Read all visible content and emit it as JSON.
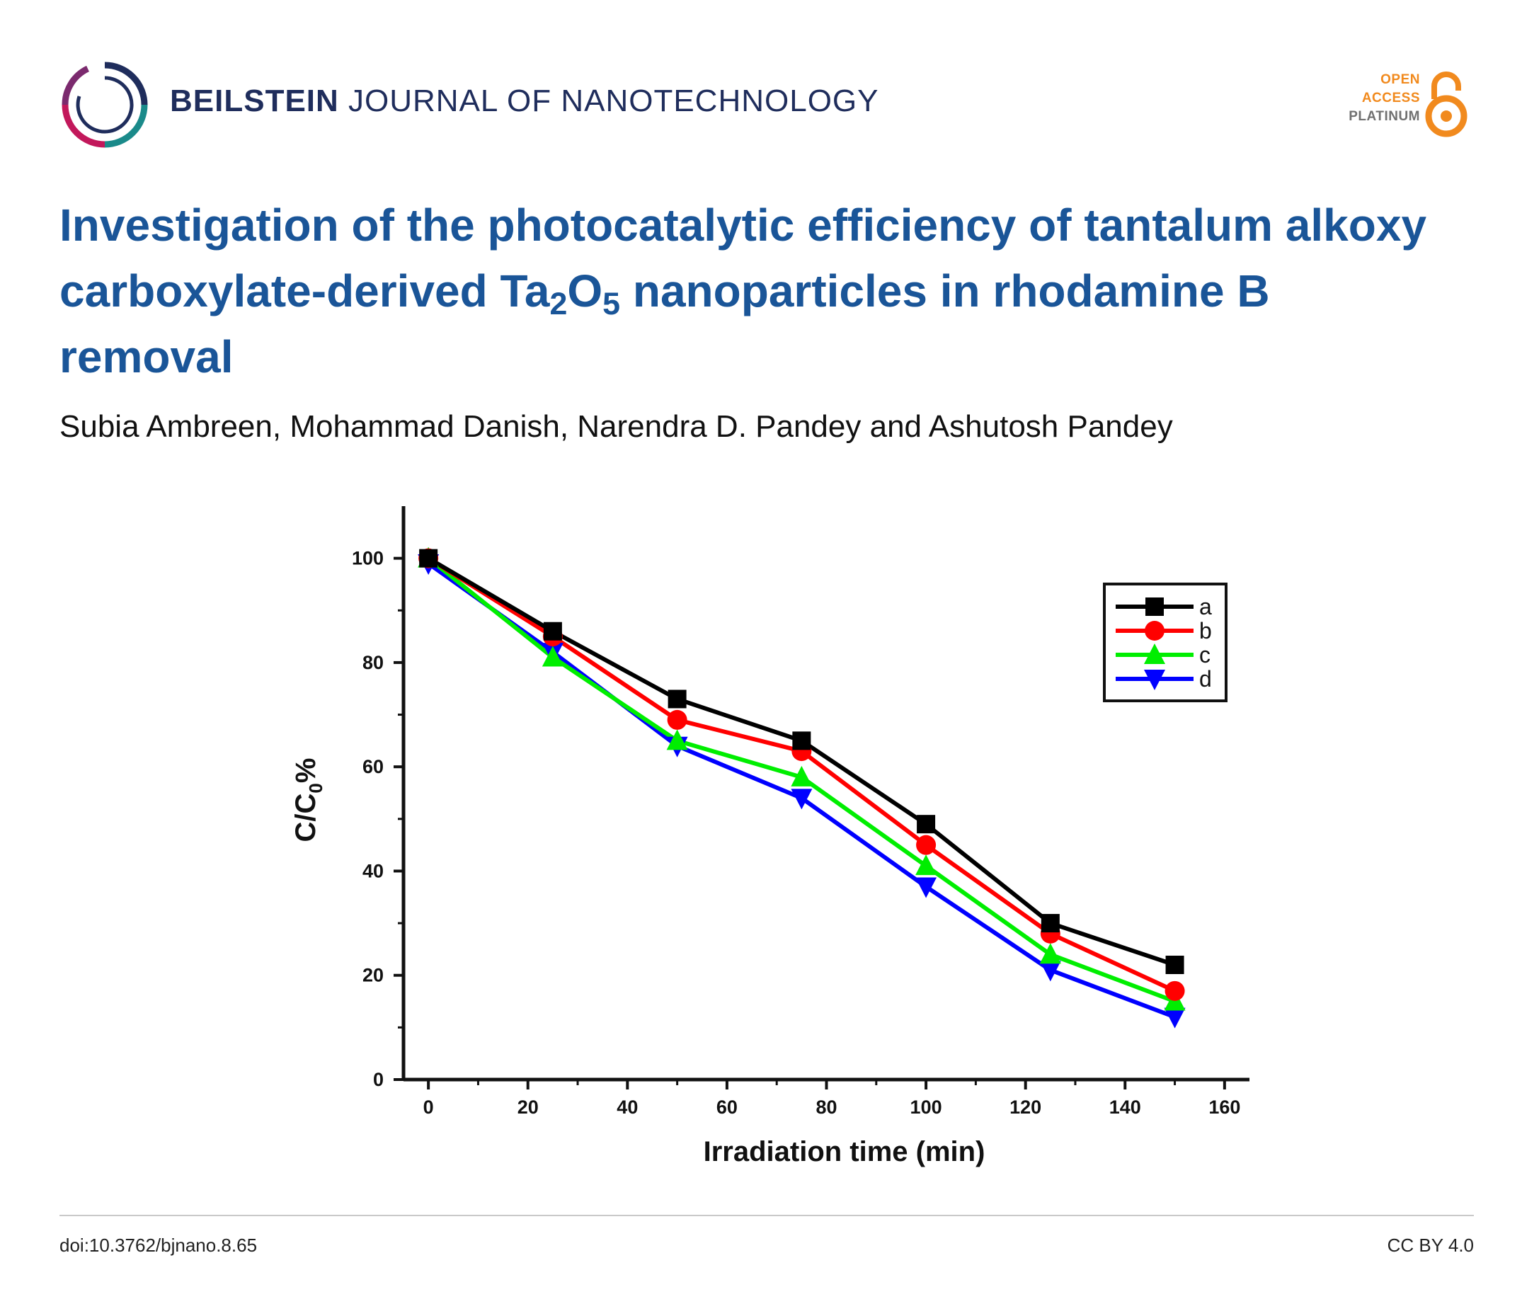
{
  "header": {
    "journal_bold": "BEILSTEIN",
    "journal_rest": "JOURNAL OF NANOTECHNOLOGY",
    "oa_line1": "OPEN",
    "oa_line2": "ACCESS",
    "oa_line3": "PLATINUM"
  },
  "article": {
    "title_part1": "Investigation of the photocatalytic efficiency of tantalum alkoxy carboxylate-derived Ta",
    "title_sub1": "2",
    "title_part2": "O",
    "title_sub2": "5",
    "title_part3": " nanoparticles in rhodamine B removal",
    "authors": "Subia Ambreen, Mohammad Danish, Narendra D. Pandey and Ashutosh Pandey"
  },
  "footer": {
    "doi": "doi:10.3762/bjnano.8.65",
    "license": "CC BY 4.0"
  },
  "colors": {
    "title": "#1a5598",
    "series_a": "#000000",
    "series_b": "#ff0000",
    "series_c": "#00ee00",
    "series_d": "#0000ff"
  },
  "chart_data": {
    "type": "line",
    "title": "",
    "xlabel": "Irradiation time (min)",
    "ylabel_main": "C/C",
    "ylabel_sub": "0",
    "ylabel_tail": "%",
    "xlim": [
      -5,
      165
    ],
    "ylim": [
      0,
      110
    ],
    "xticks": [
      0,
      20,
      40,
      60,
      80,
      100,
      120,
      140,
      160
    ],
    "yticks": [
      0,
      20,
      40,
      60,
      80,
      100
    ],
    "x": [
      0,
      25,
      50,
      75,
      100,
      125,
      150
    ],
    "legend_position": "top-right",
    "series": [
      {
        "name": "a",
        "marker": "square",
        "values": [
          100,
          86,
          73,
          65,
          49,
          30,
          22
        ]
      },
      {
        "name": "b",
        "marker": "circle",
        "values": [
          100,
          85,
          69,
          63,
          45,
          28,
          17
        ]
      },
      {
        "name": "c",
        "marker": "triangle-up",
        "values": [
          100,
          81,
          65,
          58,
          41,
          24,
          15
        ]
      },
      {
        "name": "d",
        "marker": "triangle-down",
        "values": [
          99,
          82,
          64,
          54,
          37,
          21,
          12
        ]
      }
    ]
  }
}
